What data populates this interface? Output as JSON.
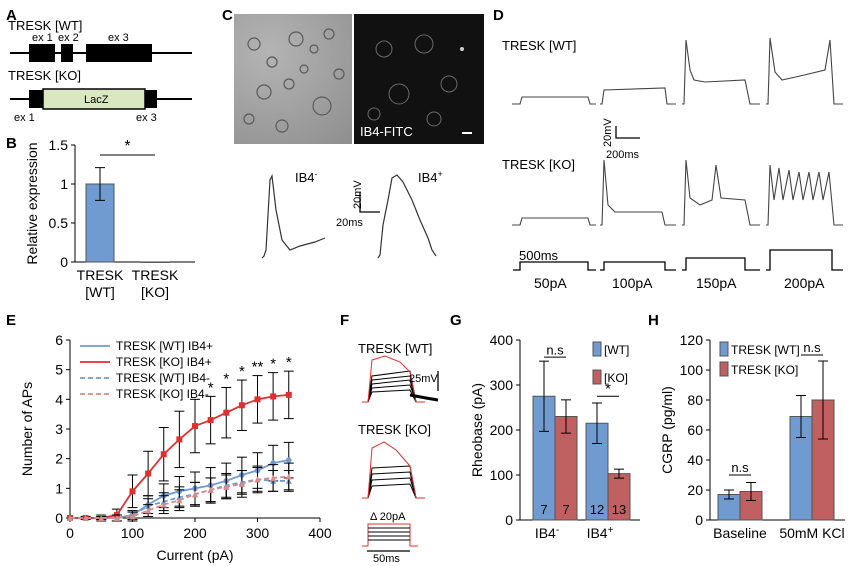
{
  "panels": {
    "A": {
      "label": "A",
      "wt_title": "TRESK [WT]",
      "ko_title": "TRESK [KO]",
      "exons_wt": [
        "ex 1",
        "ex 2",
        "ex 3"
      ],
      "exons_ko": [
        "ex 1",
        "ex 3"
      ],
      "lacz": "LacZ"
    },
    "B": {
      "label": "B",
      "ylabel": "Relative expression",
      "sig": "*"
    },
    "C": {
      "label": "C",
      "stain": "IB4-FITC",
      "ib4neg": "IB4",
      "ib4pos": "IB4",
      "neg_sup": "-",
      "pos_sup": "+",
      "scale_mv": "20mV",
      "scale_ms": "20ms"
    },
    "D": {
      "label": "D",
      "wt_title": "TRESK [WT]",
      "ko_title": "TRESK [KO]",
      "scale_mv": "20mV",
      "scale_ms": "200ms",
      "step_ms": "500ms",
      "steps": [
        "50pA",
        "100pA",
        "150pA",
        "200pA"
      ]
    },
    "E": {
      "label": "E"
    },
    "F": {
      "label": "F",
      "wt_title": "TRESK [WT]",
      "ko_title": "TRESK [KO]",
      "scale_mv": "25mV",
      "delta": "Δ 20pA",
      "dur": "50ms"
    },
    "G": {
      "label": "G"
    },
    "H": {
      "label": "H"
    }
  },
  "chart_data": [
    {
      "id": "B",
      "type": "bar",
      "categories": [
        "TRESK [WT]",
        "TRESK [KO]"
      ],
      "values": [
        1.0,
        0.0
      ],
      "errors": [
        0.21,
        0.0
      ],
      "ylabel": "Relative expression",
      "ylim": [
        0,
        1.5
      ],
      "yticks": [
        "0",
        "0.5",
        "1",
        "1.5"
      ],
      "annotations": [
        "*"
      ],
      "colors": [
        "#6f9bd0",
        "#6f9bd0"
      ]
    },
    {
      "id": "E",
      "type": "line",
      "xlabel": "Current (pA)",
      "ylabel": "Number of APs",
      "xlim": [
        0,
        400
      ],
      "ylim": [
        0,
        6
      ],
      "xticks": [
        "0",
        "100",
        "200",
        "300",
        "400"
      ],
      "yticks": [
        "0",
        "1",
        "2",
        "3",
        "4",
        "5",
        "6"
      ],
      "x": [
        0,
        25,
        50,
        75,
        100,
        125,
        150,
        175,
        200,
        225,
        250,
        275,
        300,
        325,
        350
      ],
      "series": [
        {
          "name": "TRESK [WT] IB4+",
          "color": "#6f9bd0",
          "dash": false,
          "values": [
            0,
            0,
            0,
            0,
            0.1,
            0.45,
            0.75,
            0.9,
            1.0,
            1.1,
            1.25,
            1.45,
            1.6,
            1.85,
            1.95
          ],
          "errors": [
            0,
            0,
            0,
            0,
            0.1,
            0.3,
            0.4,
            0.5,
            0.55,
            0.6,
            0.6,
            0.6,
            0.6,
            0.6,
            0.6
          ]
        },
        {
          "name": "TRESK [KO] IB4+",
          "color": "#e03030",
          "dash": false,
          "values": [
            0,
            0,
            0,
            0.1,
            0.9,
            1.5,
            2.15,
            2.65,
            3.1,
            3.3,
            3.55,
            3.8,
            4.0,
            4.1,
            4.15
          ],
          "errors": [
            0,
            0.05,
            0.1,
            0.2,
            0.55,
            0.75,
            0.9,
            0.95,
            0.9,
            0.8,
            0.85,
            0.85,
            0.8,
            0.8,
            0.8
          ]
        },
        {
          "name": "TRESK [WT] IB4-",
          "color": "#6f9bd0",
          "dash": true,
          "values": [
            0,
            0,
            0,
            0,
            0.1,
            0.4,
            0.55,
            0.7,
            0.8,
            0.95,
            1.1,
            1.2,
            1.3,
            1.25,
            1.25
          ],
          "errors": [
            0,
            0,
            0.05,
            0.1,
            0.15,
            0.25,
            0.3,
            0.35,
            0.4,
            0.4,
            0.4,
            0.4,
            0.4,
            0.35,
            0.35
          ]
        },
        {
          "name": "TRESK [KO] IB4-",
          "color": "#d98a8a",
          "dash": true,
          "values": [
            0,
            0,
            0,
            0,
            0.05,
            0.25,
            0.45,
            0.6,
            0.8,
            0.95,
            1.05,
            1.15,
            1.3,
            1.35,
            1.4
          ],
          "errors": [
            0,
            0,
            0.05,
            0.1,
            0.15,
            0.2,
            0.3,
            0.35,
            0.4,
            0.4,
            0.4,
            0.45,
            0.45,
            0.45,
            0.45
          ]
        }
      ],
      "significance": [
        {
          "x": 225,
          "text": "*"
        },
        {
          "x": 250,
          "text": "*"
        },
        {
          "x": 275,
          "text": "*"
        },
        {
          "x": 300,
          "text": "**"
        },
        {
          "x": 325,
          "text": "*"
        },
        {
          "x": 350,
          "text": "*"
        }
      ]
    },
    {
      "id": "G",
      "type": "bar",
      "categories": [
        "IB4-",
        "IB4+"
      ],
      "category_labels": [
        {
          "base": "IB4",
          "sup": "-"
        },
        {
          "base": "IB4",
          "sup": "+"
        }
      ],
      "series": [
        {
          "name": "[WT]",
          "color": "#6f9bd0",
          "values": [
            275,
            215
          ],
          "errors": [
            78,
            45
          ],
          "n": [
            "7",
            "12"
          ]
        },
        {
          "name": "[KO]",
          "color": "#c06060",
          "values": [
            230,
            103
          ],
          "errors": [
            37,
            10
          ],
          "n": [
            "7",
            "13"
          ]
        }
      ],
      "ylabel": "Rheobase (pA)",
      "ylim": [
        0,
        400
      ],
      "yticks": [
        "0",
        "100",
        "200",
        "300",
        "400"
      ],
      "annotations": [
        "n.s",
        "*"
      ]
    },
    {
      "id": "H",
      "type": "bar",
      "categories": [
        "Baseline",
        "50mM KCl"
      ],
      "series": [
        {
          "name": "TRESK [WT]",
          "color": "#6f9bd0",
          "values": [
            17,
            69
          ],
          "errors": [
            3,
            14
          ]
        },
        {
          "name": "TRESK [KO]",
          "color": "#c06060",
          "values": [
            19,
            80
          ],
          "errors": [
            6,
            26
          ]
        }
      ],
      "ylabel": "CGRP (pg/ml)",
      "ylim": [
        0,
        120
      ],
      "yticks": [
        "0",
        "20",
        "40",
        "60",
        "80",
        "100",
        "120"
      ],
      "annotations": [
        "n.s",
        "n.s"
      ]
    }
  ]
}
